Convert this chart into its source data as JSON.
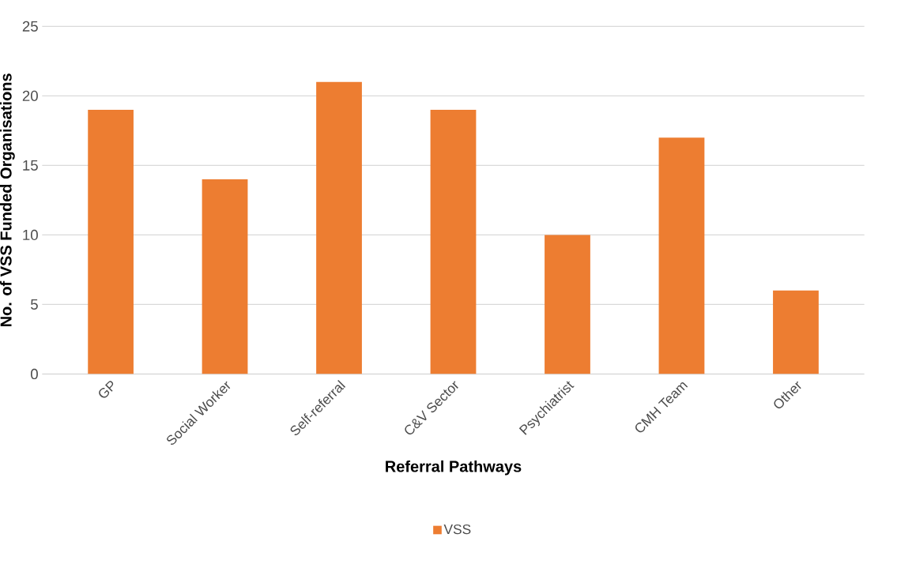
{
  "chart_data": {
    "type": "bar",
    "xlabel": "Referral Pathways",
    "ylabel": "No. of VSS Funded Organisations",
    "categories": [
      "GP",
      "Social Worker",
      "Self-referral",
      "C&V Sector",
      "Psychiatrist",
      "CMH Team",
      "Other"
    ],
    "series": [
      {
        "name": "VSS",
        "color": "#ed7d31",
        "values": [
          19,
          14,
          21,
          19,
          10,
          17,
          6
        ]
      }
    ],
    "ylim": [
      0,
      25
    ],
    "yticks": [
      0,
      5,
      10,
      15,
      20,
      25
    ],
    "grid": "y",
    "legend": "bottom"
  }
}
